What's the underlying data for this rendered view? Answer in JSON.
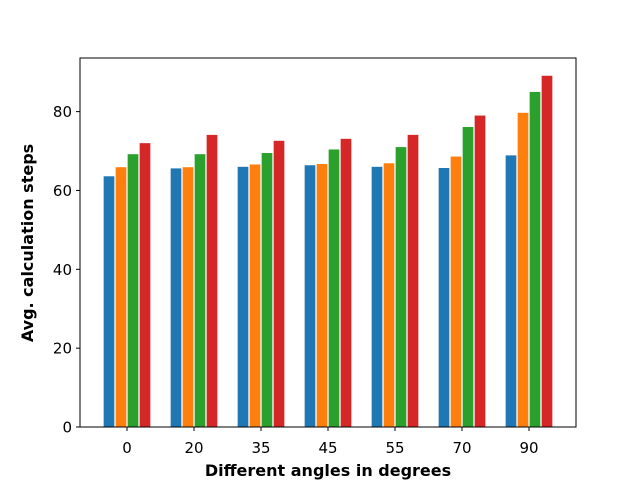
{
  "chart_data": {
    "type": "bar",
    "title": "",
    "xlabel": "Different angles in degrees",
    "ylabel": "Avg. calculation steps",
    "categories": [
      "0",
      "20",
      "35",
      "45",
      "55",
      "70",
      "90"
    ],
    "series": [
      {
        "color": "#1f77b4",
        "values": [
          63.7,
          65.7,
          66.1,
          66.5,
          66.1,
          65.8,
          69.0
        ]
      },
      {
        "color": "#ff7f0e",
        "values": [
          66.0,
          66.0,
          66.7,
          66.8,
          67.0,
          68.7,
          79.8
        ]
      },
      {
        "color": "#2ca02c",
        "values": [
          69.3,
          69.3,
          69.6,
          70.5,
          71.1,
          76.2,
          85.1
        ]
      },
      {
        "color": "#d62728",
        "values": [
          72.1,
          74.2,
          72.7,
          73.2,
          74.2,
          79.1,
          89.2
        ]
      }
    ],
    "ylim": [
      0,
      93.6
    ],
    "yticks": [
      0,
      20,
      40,
      60,
      80
    ],
    "grid": false,
    "legend": "none"
  }
}
